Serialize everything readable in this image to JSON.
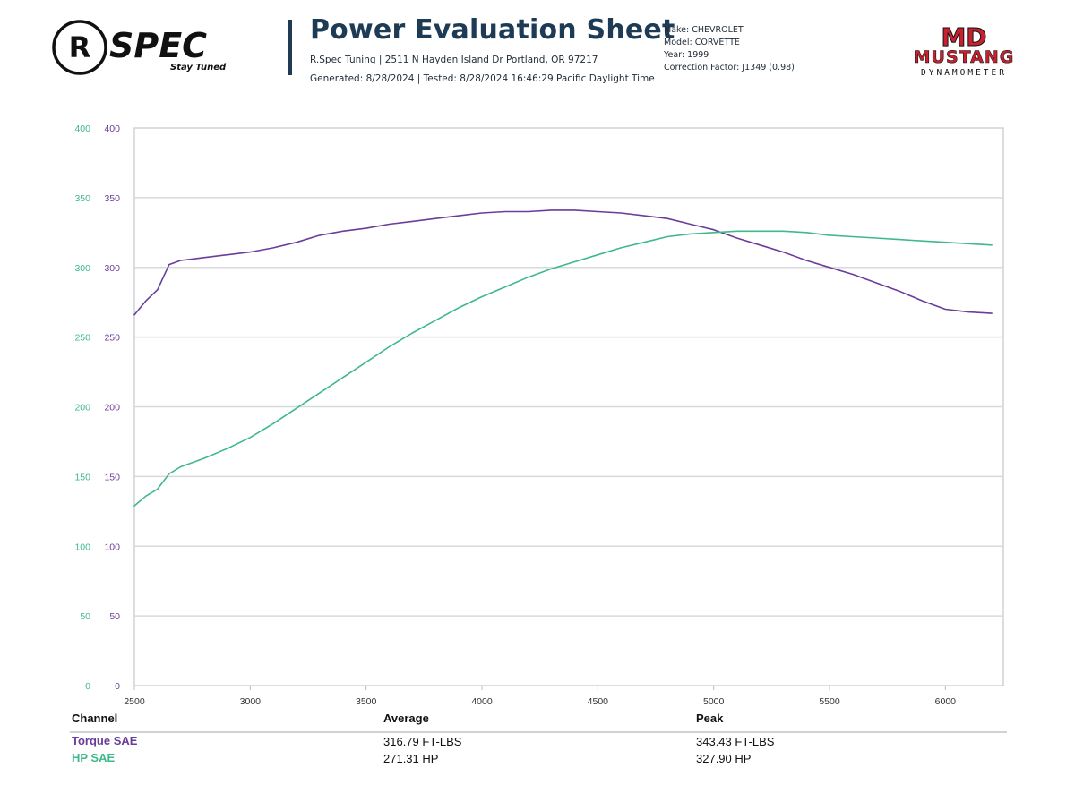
{
  "logos": {
    "rspec": {
      "wordmark": "SPEC",
      "tagline": "Stay Tuned",
      "monogram": "R"
    },
    "mustang": {
      "initials": "MD",
      "name": "MUSTANG",
      "sub": "DYNAMOMETER"
    }
  },
  "header": {
    "title": "Power Evaluation Sheet",
    "address": "R.Spec Tuning | 2511 N Hayden Island Dr Portland, OR 97217",
    "generated": "Generated: 8/28/2024 | Tested: 8/28/2024 16:46:29 Pacific Daylight Time"
  },
  "vehicle": {
    "make": "Make: CHEVROLET",
    "model": "Model: CORVETTE",
    "year": "Year: 1999",
    "correction": "Correction Factor: J1349 (0.98)"
  },
  "colors": {
    "torque": "#6a3d9a",
    "hp": "#3fb98a",
    "grid": "#d7d9dc",
    "axis_text": "#333333"
  },
  "chart_data": {
    "type": "line",
    "title": "",
    "xlabel": "",
    "ylabel": "",
    "xlim": [
      2500,
      6250
    ],
    "ylim": [
      0,
      400
    ],
    "x_ticks": [
      2500,
      3000,
      3500,
      4000,
      4500,
      5000,
      5500,
      6000
    ],
    "y_ticks": [
      0,
      50,
      100,
      150,
      200,
      250,
      300,
      350,
      400
    ],
    "grid": true,
    "x": [
      2500,
      2550,
      2600,
      2650,
      2700,
      2750,
      2800,
      2900,
      3000,
      3100,
      3200,
      3300,
      3400,
      3500,
      3600,
      3700,
      3800,
      3900,
      4000,
      4100,
      4200,
      4300,
      4400,
      4500,
      4600,
      4700,
      4800,
      4900,
      5000,
      5100,
      5200,
      5300,
      5400,
      5500,
      5600,
      5700,
      5800,
      5900,
      6000,
      6100,
      6200
    ],
    "series": [
      {
        "name": "Torque SAE",
        "color": "#6a3d9a",
        "values": [
          266,
          276,
          284,
          302,
          305,
          306,
          307,
          309,
          311,
          314,
          318,
          323,
          326,
          328,
          331,
          333,
          335,
          337,
          339,
          340,
          340,
          341,
          341,
          340,
          339,
          337,
          335,
          331,
          327,
          321,
          316,
          311,
          305,
          300,
          295,
          289,
          283,
          276,
          270,
          268,
          267
        ]
      },
      {
        "name": "HP SAE",
        "color": "#3fb98a",
        "values": [
          129,
          136,
          141,
          152,
          157,
          160,
          163,
          170,
          178,
          188,
          199,
          210,
          221,
          232,
          243,
          253,
          262,
          271,
          279,
          286,
          293,
          299,
          304,
          309,
          314,
          318,
          322,
          324,
          325,
          326,
          326,
          326,
          325,
          323,
          322,
          321,
          320,
          319,
          318,
          317,
          316
        ]
      }
    ]
  },
  "summary": {
    "headers": {
      "channel": "Channel",
      "average": "Average",
      "peak": "Peak"
    },
    "rows": [
      {
        "channel": "Torque SAE",
        "average": "316.79 FT-LBS",
        "peak": "343.43 FT-LBS"
      },
      {
        "channel": "HP SAE",
        "average": "271.31 HP",
        "peak": "327.90 HP"
      }
    ]
  }
}
